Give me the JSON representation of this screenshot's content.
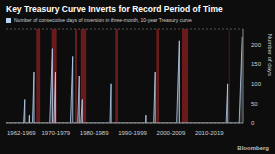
{
  "chart_data": {
    "type": "area",
    "title": "Key Treasury Curve Inverts for Record Period of Time",
    "y_label": "Number of days",
    "source": "Bloomberg",
    "x": [
      1962.0,
      1966.6,
      1966.9,
      1966.92,
      1968.0,
      1968.1,
      1968.12,
      1968.9,
      1969.3,
      1969.32,
      1973.4,
      1974.1,
      1974.12,
      1974.5,
      1974.9,
      1974.92,
      1978.8,
      1979.4,
      1979.42,
      1980.7,
      1981.1,
      1981.12,
      1981.5,
      1981.9,
      1981.92,
      1989.1,
      1989.4,
      1989.42,
      1998.4,
      1998.5,
      1998.52,
      2000.5,
      2000.9,
      2000.92,
      2006.5,
      2007.2,
      2007.22,
      2019.4,
      2019.8,
      2019.82,
      2022.8,
      2023.6
    ],
    "series": [
      {
        "name": "Number of consecutive days of inversion in three-month, 10-year Treasury curve",
        "color": "#b9d3f2",
        "values": [
          0,
          0,
          60,
          0,
          0,
          20,
          0,
          0,
          130,
          0,
          0,
          190,
          0,
          0,
          130,
          0,
          0,
          170,
          0,
          0,
          120,
          0,
          0,
          60,
          0,
          0,
          100,
          0,
          0,
          20,
          0,
          0,
          130,
          0,
          0,
          210,
          0,
          0,
          100,
          0,
          0,
          220
        ]
      }
    ],
    "recessions": [
      [
        1969.9,
        1970.9
      ],
      [
        1973.9,
        1975.2
      ],
      [
        1980.0,
        1980.5
      ],
      [
        1981.5,
        1982.9
      ],
      [
        1990.5,
        1991.2
      ],
      [
        2001.2,
        2001.9
      ],
      [
        2007.9,
        2009.5
      ],
      [
        2020.1,
        2020.3
      ]
    ],
    "recession_color": "#7a1f1f",
    "xlim": [
      1962,
      2023.8
    ],
    "xticks": [
      {
        "value": 1966,
        "label": "1962-1969"
      },
      {
        "value": 1975,
        "label": "1970-1979"
      },
      {
        "value": 1985,
        "label": "1980-1989"
      },
      {
        "value": 1995,
        "label": "1990-1999"
      },
      {
        "value": 2005,
        "label": "2000-2009"
      },
      {
        "value": 2015,
        "label": "2010-2019"
      }
    ],
    "ylim": [
      0,
      240
    ],
    "yticks": [
      0,
      50,
      100,
      150,
      200
    ],
    "grid": true
  }
}
